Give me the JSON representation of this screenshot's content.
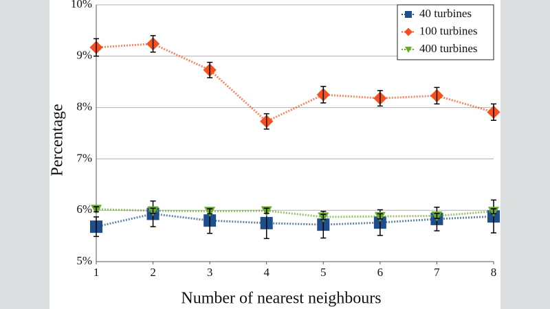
{
  "chart_data": {
    "type": "line",
    "x_label": "Number of nearest neighbours",
    "y_label": "Percentage",
    "x": [
      1,
      2,
      3,
      4,
      5,
      6,
      7,
      8
    ],
    "xlim": [
      1,
      8
    ],
    "xticks": [
      1,
      2,
      3,
      4,
      5,
      6,
      7,
      8
    ],
    "ylim": [
      5,
      10
    ],
    "yticks": [
      {
        "value": 5,
        "label": "5%"
      },
      {
        "value": 6,
        "label": "6%"
      },
      {
        "value": 7,
        "label": "7%"
      },
      {
        "value": 8,
        "label": "8%"
      },
      {
        "value": 9,
        "label": "9%"
      },
      {
        "value": 10,
        "label": "10%"
      }
    ],
    "grid": true,
    "legend": "top-right",
    "series": [
      {
        "name": "40 turbines",
        "color": "#1f4e8c",
        "marker": "square",
        "values": [
          5.68,
          5.93,
          5.8,
          5.75,
          5.72,
          5.76,
          5.83,
          5.88
        ],
        "errors": [
          0.19,
          0.25,
          0.25,
          0.3,
          0.26,
          0.25,
          0.23,
          0.32
        ]
      },
      {
        "name": "100 turbines",
        "color": "#f5501e",
        "marker": "diamond",
        "values": [
          9.17,
          9.24,
          8.73,
          7.73,
          8.25,
          8.18,
          8.23,
          7.91
        ],
        "errors": [
          0.17,
          0.16,
          0.15,
          0.15,
          0.16,
          0.15,
          0.16,
          0.16
        ]
      },
      {
        "name": "400 turbines",
        "color": "#6aa82a",
        "marker": "triangle-down",
        "values": [
          6.02,
          5.99,
          5.98,
          5.99,
          5.87,
          5.88,
          5.89,
          5.98
        ],
        "errors": [
          0.05,
          0.05,
          0.05,
          0.05,
          0.05,
          0.05,
          0.05,
          0.05
        ]
      }
    ]
  }
}
